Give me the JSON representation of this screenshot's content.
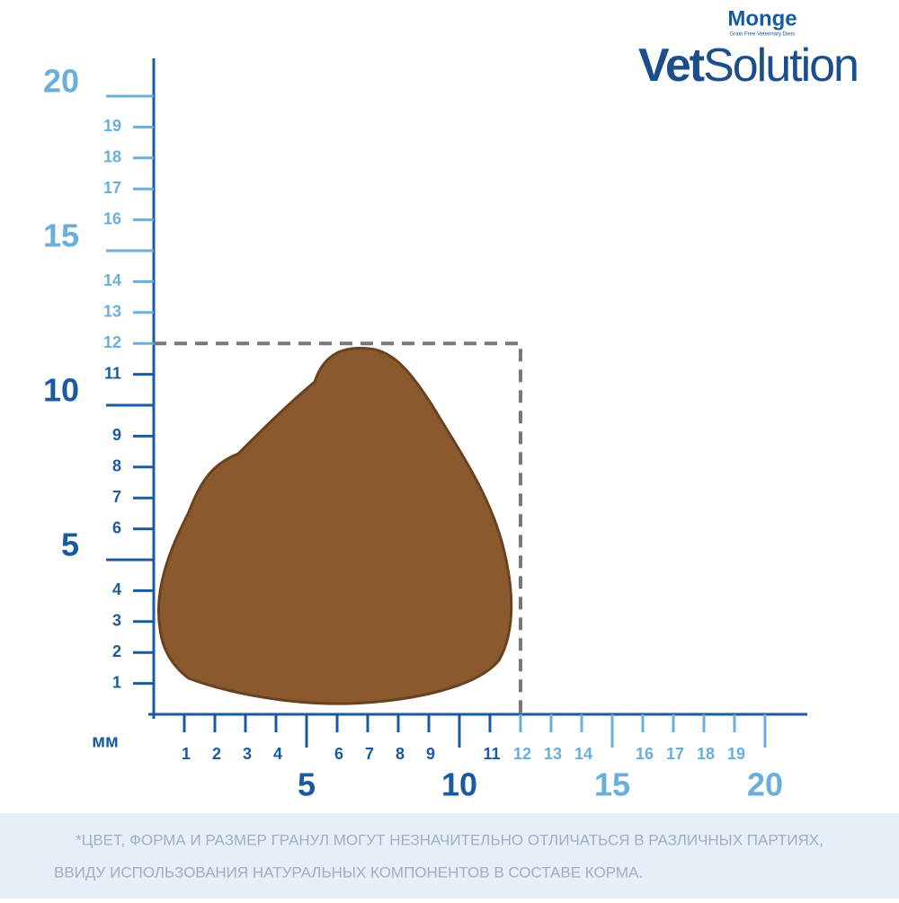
{
  "brand": {
    "name": "Monge",
    "tagline": "Grain Free Veterinary Diets",
    "product_bold": "Vet",
    "product_light": "Solution"
  },
  "ruler": {
    "unit": "мм",
    "x_ticks": [
      1,
      2,
      3,
      4,
      5,
      6,
      7,
      8,
      9,
      10,
      11,
      12,
      13,
      14,
      15,
      16,
      17,
      18,
      19,
      20
    ],
    "y_ticks": [
      1,
      2,
      3,
      4,
      5,
      6,
      7,
      8,
      9,
      10,
      11,
      12,
      13,
      14,
      15,
      16,
      17,
      18,
      19,
      20
    ],
    "major_ticks": [
      5,
      10,
      15,
      20
    ],
    "kibble_size": 12,
    "dark_color": "#1a5aa0",
    "light_color": "#6aaedc"
  },
  "footnote": [
    "*ЦВЕТ, ФОРМА И РАЗМЕР ГРАНУЛ МОГУТ НЕЗНАЧИТЕЛЬНО ОТЛИЧАТЬСЯ В РАЗЛИЧНЫХ ПАРТИЯХ,",
    "ВВИДУ ИСПОЛЬЗОВАНИЯ НАТУРАЛЬНЫХ КОМПОНЕНТОВ В СОСТАВЕ КОРМА."
  ]
}
